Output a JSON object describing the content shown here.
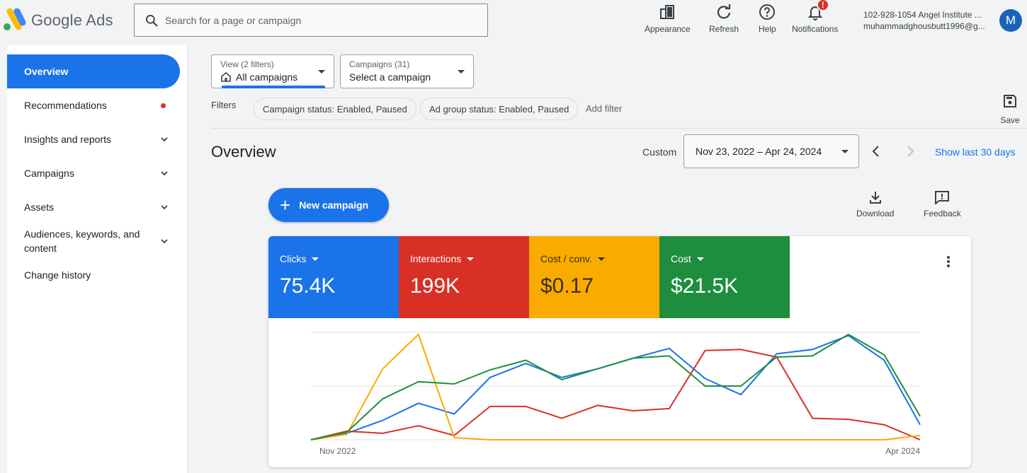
{
  "app": {
    "name": "Google Ads"
  },
  "search": {
    "placeholder": "Search for a page or campaign"
  },
  "toolbar": {
    "appearance": "Appearance",
    "refresh": "Refresh",
    "help": "Help",
    "notifications": "Notifications",
    "notifications_badge": "!"
  },
  "account": {
    "line1": "102-928-1054 Angel Institute ...",
    "line2": "muhammadghousbutt1996@g...",
    "avatar_letter": "M"
  },
  "sidebar": {
    "items": [
      {
        "label": "Overview"
      },
      {
        "label": "Recommendations"
      },
      {
        "label": "Insights and reports"
      },
      {
        "label": "Campaigns"
      },
      {
        "label": "Assets"
      },
      {
        "label": "Audiences, keywords, and content"
      },
      {
        "label": "Change history"
      }
    ]
  },
  "view_picker": {
    "small": "View (2 filters)",
    "main": "All campaigns"
  },
  "campaign_picker": {
    "small": "Campaigns (31)",
    "main": "Select a campaign"
  },
  "filters": {
    "label": "Filters",
    "chips": [
      "Campaign status: Enabled, Paused",
      "Ad group status: Enabled, Paused"
    ],
    "add": "Add filter",
    "save": "Save"
  },
  "overview": {
    "title": "Overview",
    "custom_label": "Custom",
    "date_range": "Nov 23, 2022 – Apr 24, 2024",
    "show_last": "Show last 30 days",
    "new_campaign": "New campaign",
    "download": "Download",
    "feedback": "Feedback"
  },
  "metrics": [
    {
      "name": "Clicks",
      "value": "75.4K",
      "color": "#1a73e8"
    },
    {
      "name": "Interactions",
      "value": "199K",
      "color": "#d93025"
    },
    {
      "name": "Cost / conv.",
      "value": "$0.17",
      "color": "#f9ab00"
    },
    {
      "name": "Cost",
      "value": "$21.5K",
      "color": "#1e8e3e"
    }
  ],
  "chart_data": {
    "type": "line",
    "x_labels": [
      "Nov 2022",
      "Apr 2024"
    ],
    "ylim": [
      0,
      1
    ],
    "grid": true,
    "series": [
      {
        "name": "Clicks",
        "color": "#1a73e8",
        "values": [
          0,
          0.06,
          0.18,
          0.34,
          0.24,
          0.58,
          0.71,
          0.58,
          0.66,
          0.76,
          0.85,
          0.57,
          0.42,
          0.8,
          0.84,
          0.97,
          0.74,
          0.14
        ]
      },
      {
        "name": "Interactions",
        "color": "#d93025",
        "values": [
          0,
          0.08,
          0.06,
          0.13,
          0.04,
          0.31,
          0.31,
          0.2,
          0.32,
          0.27,
          0.29,
          0.83,
          0.84,
          0.77,
          0.2,
          0.19,
          0.14,
          0.0
        ]
      },
      {
        "name": "Cost / conv.",
        "color": "#f9ab00",
        "values": [
          0,
          0.05,
          0.66,
          0.98,
          0.02,
          0.0,
          0.0,
          0.0,
          0.0,
          0.0,
          0.0,
          0.0,
          0.0,
          0.0,
          0.0,
          0.0,
          0.0,
          0.04
        ]
      },
      {
        "name": "Cost",
        "color": "#1e8e3e",
        "values": [
          0,
          0.07,
          0.38,
          0.54,
          0.52,
          0.65,
          0.74,
          0.56,
          0.66,
          0.76,
          0.78,
          0.5,
          0.5,
          0.77,
          0.78,
          0.98,
          0.79,
          0.22
        ]
      }
    ]
  }
}
